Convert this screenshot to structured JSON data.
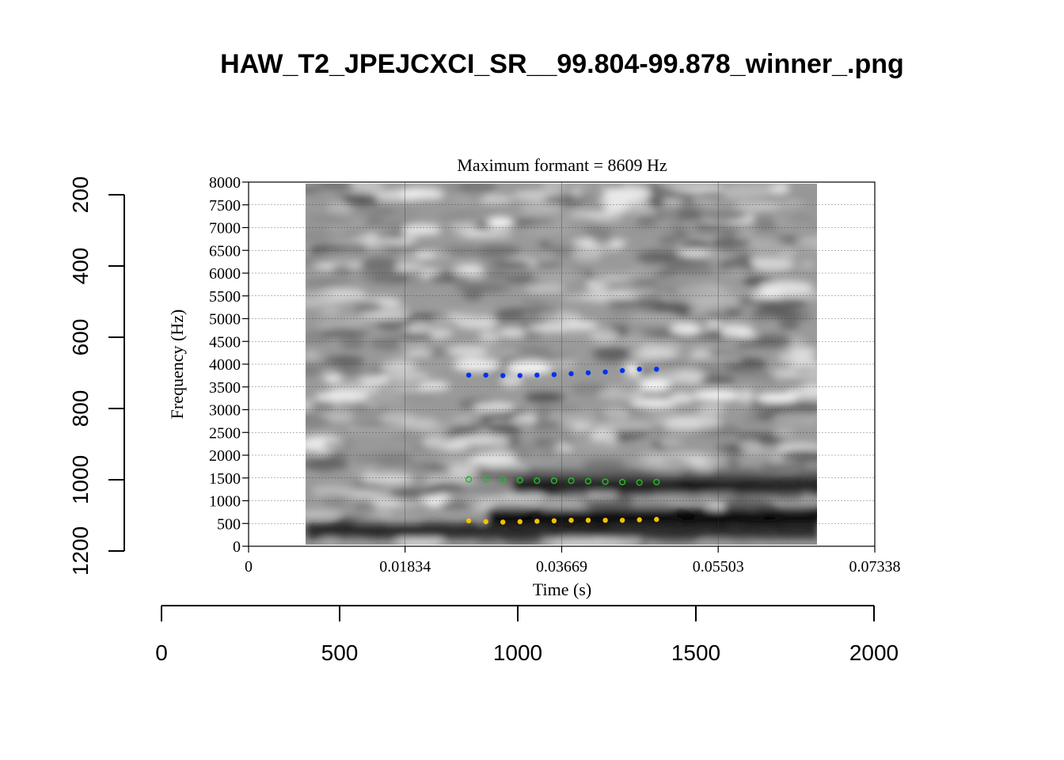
{
  "figure": {
    "title": "HAW_T2_JPEJCXCI_SR__99.804-99.878_winner_.png",
    "outer_x_ticks": [
      "0",
      "500",
      "1000",
      "1500",
      "2000"
    ],
    "outer_y_ticks": [
      "200",
      "400",
      "600",
      "800",
      "1000",
      "1200"
    ]
  },
  "chart_data": {
    "type": "scatter",
    "title": "Maximum formant  =  8609 Hz",
    "xlabel": "Time (s)",
    "ylabel": "Frequency (Hz)",
    "xlim": [
      0,
      0.07338
    ],
    "ylim": [
      0,
      8000
    ],
    "x_ticks": [
      "0",
      "0.01834",
      "0.03669",
      "0.05503",
      "0.07338"
    ],
    "y_ticks": [
      "0",
      "500",
      "1000",
      "1500",
      "2000",
      "2500",
      "3000",
      "3500",
      "4000",
      "4500",
      "5000",
      "5500",
      "6000",
      "6500",
      "7000",
      "7500",
      "8000"
    ],
    "grid": true,
    "spectrogram_time_range": [
      0.0067,
      0.0667
    ],
    "background": "grayscale spectrogram",
    "x": [
      0.0258,
      0.0278,
      0.0298,
      0.0318,
      0.0338,
      0.0358,
      0.0378,
      0.0398,
      0.0418,
      0.0438,
      0.0458,
      0.0478
    ],
    "series": [
      {
        "marker": "filled",
        "color": "#f2c200",
        "values": [
          560,
          540,
          530,
          540,
          550,
          560,
          570,
          570,
          570,
          570,
          580,
          590
        ]
      },
      {
        "marker": "hollow",
        "color": "#22bb22",
        "values": [
          1470,
          1470,
          1460,
          1450,
          1440,
          1440,
          1440,
          1430,
          1420,
          1410,
          1400,
          1410
        ]
      },
      {
        "marker": "filled",
        "color": "#0033ee",
        "values": [
          3760,
          3760,
          3750,
          3750,
          3760,
          3770,
          3790,
          3810,
          3830,
          3860,
          3890,
          3890
        ]
      }
    ]
  }
}
